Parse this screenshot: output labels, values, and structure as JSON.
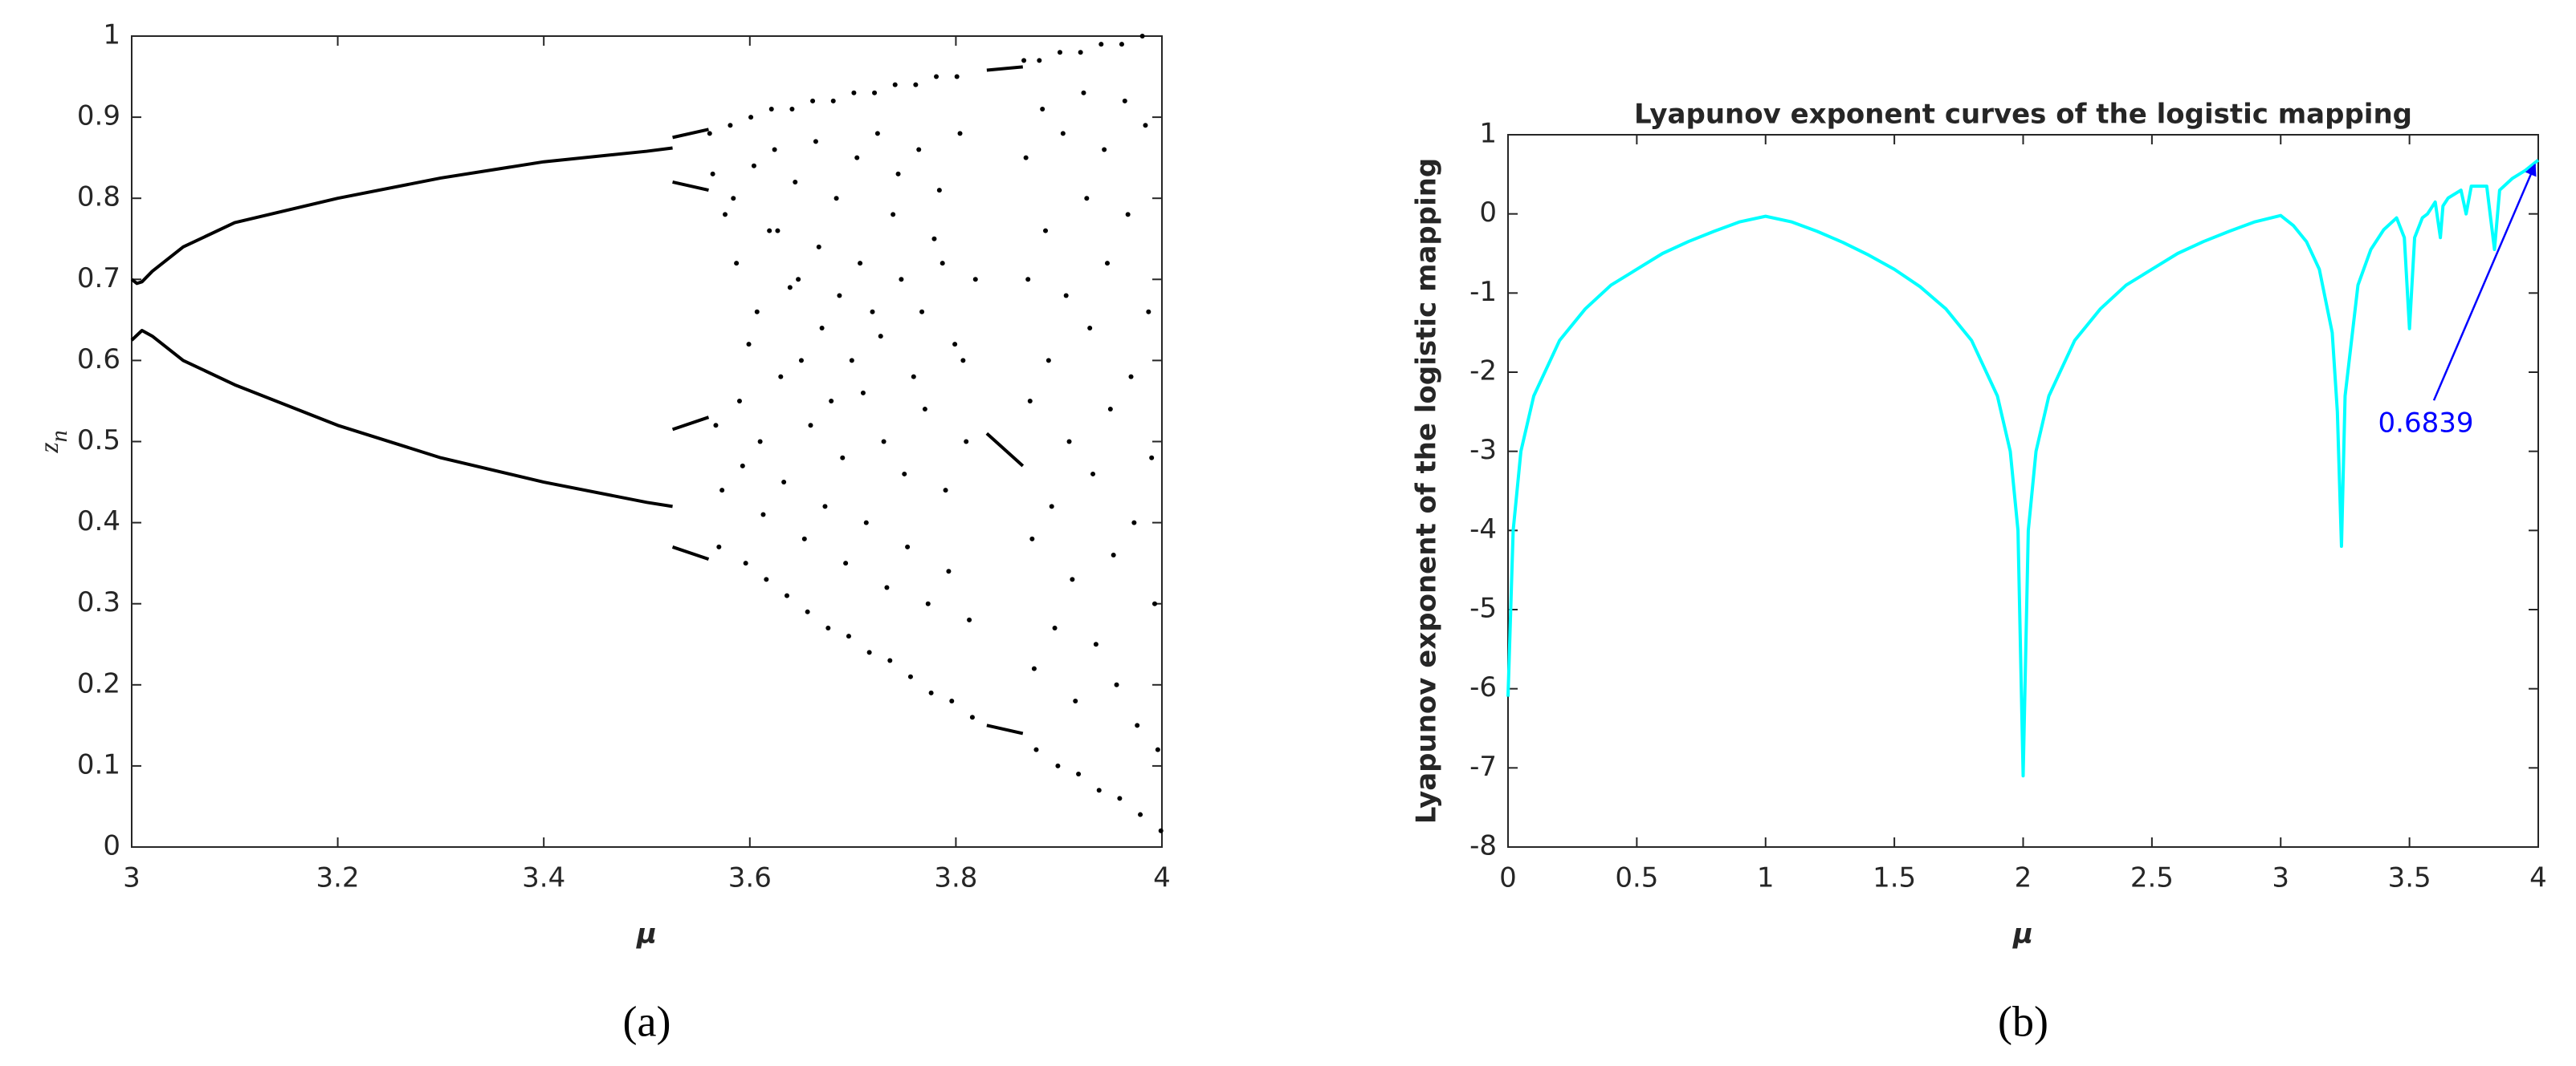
{
  "chart_data": [
    {
      "type": "scatter",
      "xlabel": "μ",
      "ylabel": {
        "base": "z",
        "subscript": "n"
      },
      "caption": "(a)",
      "xlim": [
        3,
        4
      ],
      "xticks": [
        3,
        3.2,
        3.4,
        3.6,
        3.8,
        4
      ],
      "ylim": [
        0,
        1
      ],
      "yticks": [
        0,
        0.1,
        0.2,
        0.3,
        0.4,
        0.5,
        0.6,
        0.7,
        0.8,
        0.9,
        1
      ],
      "series": [
        {
          "mode": "line",
          "color": "#000000",
          "x": [
            3,
            3.005,
            3.01,
            3.02,
            3.05,
            3.1,
            3.2,
            3.3,
            3.4,
            3.5,
            3.525
          ],
          "values": [
            0.7,
            0.695,
            0.697,
            0.71,
            0.74,
            0.77,
            0.8,
            0.825,
            0.845,
            0.858,
            0.862
          ]
        },
        {
          "mode": "line",
          "color": "#000000",
          "x": [
            3,
            3.01,
            3.02,
            3.05,
            3.1,
            3.2,
            3.3,
            3.4,
            3.5,
            3.525
          ],
          "values": [
            0.625,
            0.637,
            0.63,
            0.6,
            0.57,
            0.52,
            0.48,
            0.45,
            0.425,
            0.42
          ]
        },
        {
          "mode": "line",
          "color": "#000000",
          "x": [
            3.525,
            3.56
          ],
          "values": [
            0.875,
            0.885
          ]
        },
        {
          "mode": "line",
          "color": "#000000",
          "x": [
            3.525,
            3.56
          ],
          "values": [
            0.82,
            0.81
          ]
        },
        {
          "mode": "line",
          "color": "#000000",
          "x": [
            3.525,
            3.56
          ],
          "values": [
            0.515,
            0.53
          ]
        },
        {
          "mode": "line",
          "color": "#000000",
          "x": [
            3.525,
            3.56
          ],
          "values": [
            0.37,
            0.355
          ]
        },
        {
          "mode": "line",
          "color": "#000000",
          "x": [
            3.83,
            3.865
          ],
          "values": [
            0.958,
            0.962
          ]
        },
        {
          "mode": "line",
          "color": "#000000",
          "x": [
            3.83,
            3.865
          ],
          "values": [
            0.51,
            0.47
          ]
        },
        {
          "mode": "line",
          "color": "#000000",
          "x": [
            3.83,
            3.865
          ],
          "values": [
            0.15,
            0.14
          ]
        },
        {
          "mode": "points",
          "color": "#000000",
          "x": [
            3.561,
            3.564,
            3.567,
            3.57,
            3.573,
            3.576,
            3.581,
            3.584,
            3.587,
            3.59,
            3.593,
            3.596,
            3.599,
            3.601,
            3.604,
            3.607,
            3.61,
            3.613,
            3.616,
            3.619,
            3.621,
            3.624,
            3.627,
            3.63,
            3.633,
            3.636,
            3.639,
            3.641,
            3.644,
            3.647,
            3.65,
            3.653,
            3.656,
            3.659,
            3.661,
            3.664,
            3.667,
            3.67,
            3.673,
            3.676,
            3.679,
            3.681,
            3.684,
            3.687,
            3.69,
            3.693,
            3.696,
            3.699,
            3.701,
            3.704,
            3.707,
            3.71,
            3.713,
            3.716,
            3.719,
            3.721,
            3.724,
            3.727,
            3.73,
            3.733,
            3.736,
            3.739,
            3.741,
            3.744,
            3.747,
            3.75,
            3.753,
            3.756,
            3.759,
            3.761,
            3.764,
            3.767,
            3.77,
            3.773,
            3.776,
            3.779,
            3.781,
            3.784,
            3.787,
            3.79,
            3.793,
            3.796,
            3.799,
            3.801,
            3.804,
            3.807,
            3.81,
            3.813,
            3.816,
            3.819,
            3.866,
            3.868,
            3.87,
            3.872,
            3.874,
            3.876,
            3.878,
            3.881,
            3.884,
            3.887,
            3.89,
            3.893,
            3.896,
            3.899,
            3.901,
            3.904,
            3.907,
            3.91,
            3.913,
            3.916,
            3.919,
            3.921,
            3.924,
            3.927,
            3.93,
            3.933,
            3.936,
            3.939,
            3.941,
            3.944,
            3.947,
            3.95,
            3.953,
            3.956,
            3.959,
            3.961,
            3.964,
            3.967,
            3.97,
            3.973,
            3.976,
            3.979,
            3.981,
            3.984,
            3.987,
            3.99,
            3.993,
            3.996,
            3.999
          ],
          "values": [
            0.88,
            0.83,
            0.52,
            0.37,
            0.44,
            0.78,
            0.89,
            0.8,
            0.72,
            0.55,
            0.47,
            0.35,
            0.62,
            0.9,
            0.84,
            0.66,
            0.5,
            0.41,
            0.33,
            0.76,
            0.91,
            0.86,
            0.76,
            0.58,
            0.45,
            0.31,
            0.69,
            0.91,
            0.82,
            0.7,
            0.6,
            0.38,
            0.29,
            0.52,
            0.92,
            0.87,
            0.74,
            0.64,
            0.42,
            0.27,
            0.55,
            0.92,
            0.8,
            0.68,
            0.48,
            0.35,
            0.26,
            0.6,
            0.93,
            0.85,
            0.72,
            0.56,
            0.4,
            0.24,
            0.66,
            0.93,
            0.88,
            0.63,
            0.5,
            0.32,
            0.23,
            0.78,
            0.94,
            0.83,
            0.7,
            0.46,
            0.37,
            0.21,
            0.58,
            0.94,
            0.86,
            0.66,
            0.54,
            0.3,
            0.19,
            0.75,
            0.95,
            0.81,
            0.72,
            0.44,
            0.34,
            0.18,
            0.62,
            0.95,
            0.88,
            0.6,
            0.5,
            0.28,
            0.16,
            0.7,
            0.97,
            0.85,
            0.7,
            0.55,
            0.38,
            0.22,
            0.12,
            0.97,
            0.91,
            0.76,
            0.6,
            0.42,
            0.27,
            0.1,
            0.98,
            0.88,
            0.68,
            0.5,
            0.33,
            0.18,
            0.09,
            0.98,
            0.93,
            0.8,
            0.64,
            0.46,
            0.25,
            0.07,
            0.99,
            0.86,
            0.72,
            0.54,
            0.36,
            0.2,
            0.06,
            0.99,
            0.92,
            0.78,
            0.58,
            0.4,
            0.15,
            0.04,
            1,
            0.89,
            0.66,
            0.48,
            0.3,
            0.12,
            0.02
          ]
        }
      ]
    },
    {
      "type": "line",
      "title": "Lyapunov exponent curves of the logistic mapping",
      "xlabel": "μ",
      "ylabel": "Lyapunov exponent of the logistic mapping",
      "caption": "(b)",
      "xlim": [
        0,
        4
      ],
      "xticks": [
        0,
        0.5,
        1,
        1.5,
        2,
        2.5,
        3,
        3.5,
        4
      ],
      "ylim": [
        -8,
        1
      ],
      "yticks": [
        -8,
        -7,
        -6,
        -5,
        -4,
        -3,
        -2,
        -1,
        0,
        1
      ],
      "series": [
        {
          "color": "#00ffff",
          "x": [
            0,
            0.02,
            0.05,
            0.1,
            0.2,
            0.3,
            0.4,
            0.5,
            0.6,
            0.7,
            0.8,
            0.9,
            1,
            1.1,
            1.2,
            1.3,
            1.4,
            1.5,
            1.6,
            1.7,
            1.8,
            1.9,
            1.95,
            1.98,
            2,
            2.02,
            2.05,
            2.1,
            2.2,
            2.3,
            2.4,
            2.5,
            2.6,
            2.7,
            2.8,
            2.9,
            3,
            3.05,
            3.1,
            3.15,
            3.2,
            3.22,
            3.236,
            3.25,
            3.3,
            3.35,
            3.4,
            3.45,
            3.48,
            3.5,
            3.52,
            3.55,
            3.57,
            3.6,
            3.62,
            3.63,
            3.65,
            3.7,
            3.72,
            3.74,
            3.8,
            3.83,
            3.85,
            3.9,
            3.95,
            4
          ],
          "values": [
            -6.1,
            -4,
            -3,
            -2.3,
            -1.6,
            -1.2,
            -0.9,
            -0.7,
            -0.5,
            -0.35,
            -0.22,
            -0.1,
            -0.03,
            -0.1,
            -0.22,
            -0.36,
            -0.52,
            -0.7,
            -0.92,
            -1.2,
            -1.6,
            -2.3,
            -3,
            -4,
            -7.1,
            -4,
            -3,
            -2.3,
            -1.6,
            -1.2,
            -0.9,
            -0.7,
            -0.5,
            -0.35,
            -0.22,
            -0.1,
            -0.02,
            -0.15,
            -0.35,
            -0.7,
            -1.5,
            -2.5,
            -4.2,
            -2.3,
            -0.9,
            -0.45,
            -0.2,
            -0.05,
            -0.3,
            -1.45,
            -0.3,
            -0.05,
            0,
            0.15,
            -0.3,
            0.1,
            0.2,
            0.3,
            0,
            0.35,
            0.35,
            -0.45,
            0.3,
            0.45,
            0.55,
            0.68
          ]
        }
      ],
      "annotation": {
        "x": 4,
        "value": 0.6839,
        "color": "#0000ff"
      }
    }
  ]
}
